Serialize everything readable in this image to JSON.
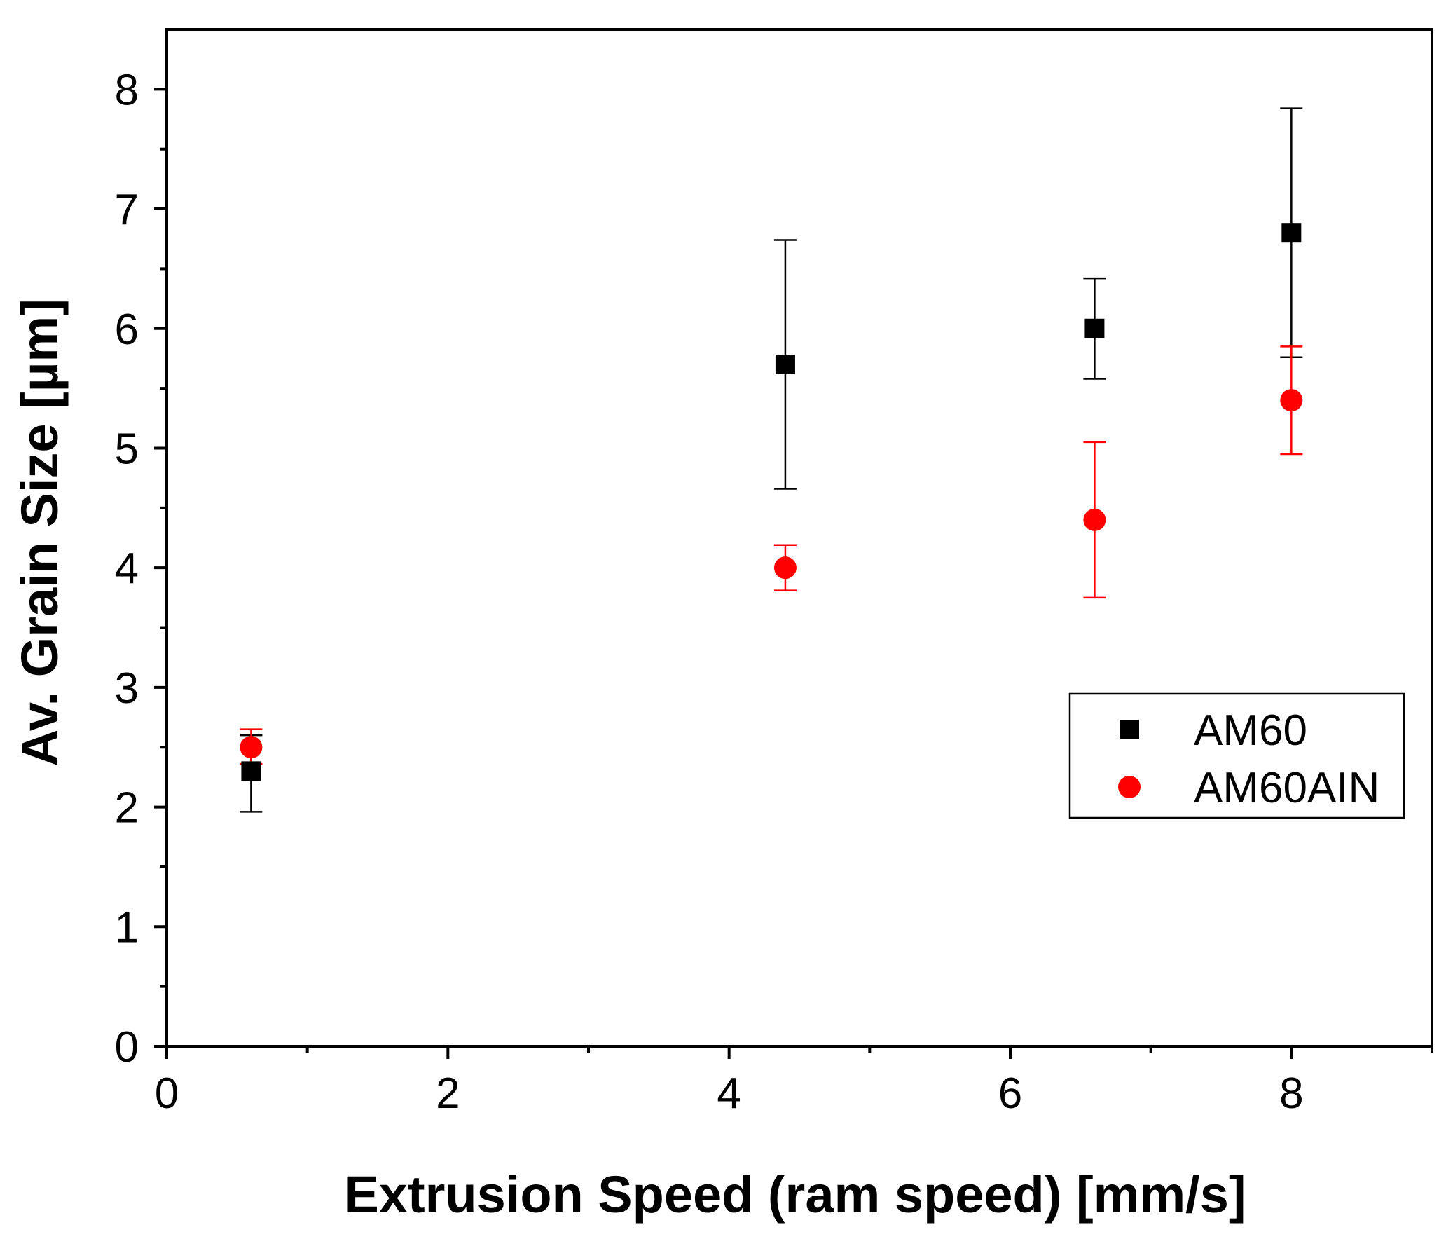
{
  "chart_data": {
    "type": "scatter",
    "title": "",
    "xlabel": "Extrusion Speed (ram speed) [mm/s]",
    "ylabel": "Av. Grain Size [µm]",
    "xlim": [
      0,
      9
    ],
    "ylim": [
      0,
      8.5
    ],
    "xticks": [
      0,
      2,
      4,
      6,
      8
    ],
    "xticks_minor": [
      1,
      3,
      5,
      7,
      9
    ],
    "yticks": [
      0,
      1,
      2,
      3,
      4,
      5,
      6,
      7,
      8
    ],
    "yticks_minor": [
      0.5,
      1.5,
      2.5,
      3.5,
      4.5,
      5.5,
      6.5,
      7.5
    ],
    "grid": false,
    "legend_position": "right",
    "series": [
      {
        "name": "AM60",
        "marker": "square",
        "color": "#000000",
        "x": [
          0.6,
          4.4,
          6.6,
          8.0
        ],
        "y": [
          2.3,
          5.7,
          6.0,
          6.8
        ],
        "err_low": [
          1.96,
          4.66,
          5.58,
          5.76
        ],
        "err_high": [
          2.6,
          6.74,
          6.42,
          7.84
        ]
      },
      {
        "name": "AM60AIN",
        "marker": "circle",
        "color": "#ff0000",
        "x": [
          0.6,
          4.4,
          6.6,
          8.0
        ],
        "y": [
          2.5,
          4.0,
          4.4,
          5.4
        ],
        "err_low": [
          2.36,
          3.81,
          3.75,
          4.95
        ],
        "err_high": [
          2.65,
          4.19,
          5.05,
          5.85
        ]
      }
    ]
  }
}
